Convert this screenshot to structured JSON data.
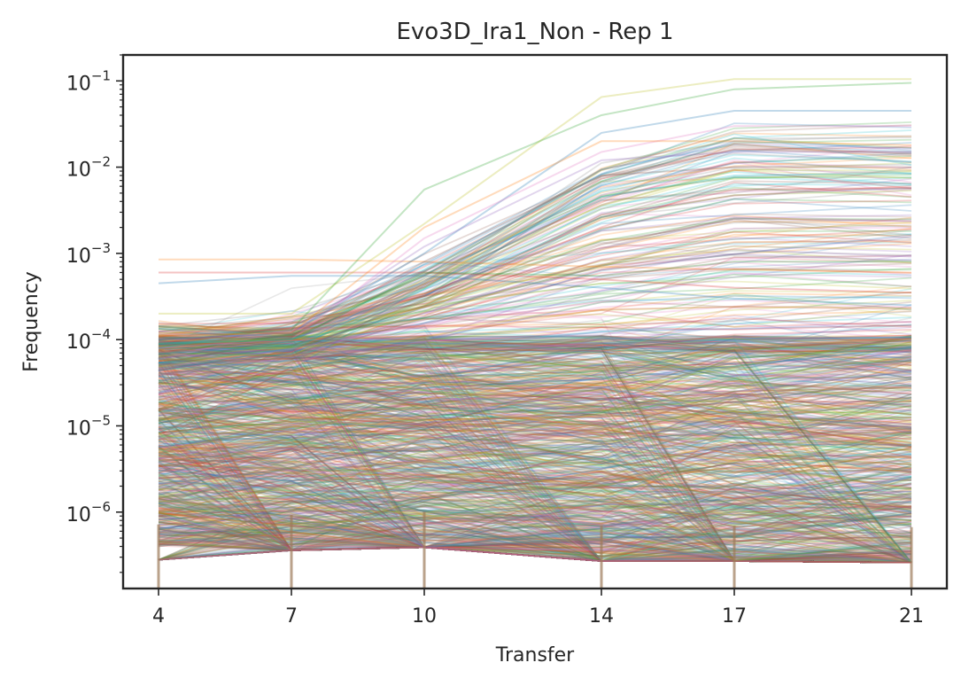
{
  "chart_data": {
    "type": "line",
    "title": "Evo3D_Ira1_Non - Rep 1",
    "xlabel": "Transfer",
    "ylabel": "Frequency",
    "x": [
      4,
      7,
      10,
      14,
      17,
      21
    ],
    "x_tick_labels": [
      "4",
      "7",
      "10",
      "14",
      "17",
      "21"
    ],
    "xlim": [
      3.2,
      21.8
    ],
    "y_scale": "log",
    "ylim": [
      1.3e-07,
      0.2
    ],
    "y_ticks": [
      {
        "value": 1e-06,
        "base": "10",
        "exp": "−6"
      },
      {
        "value": 1e-05,
        "base": "10",
        "exp": "−5"
      },
      {
        "value": 0.0001,
        "base": "10",
        "exp": "−4"
      },
      {
        "value": 0.001,
        "base": "10",
        "exp": "−3"
      },
      {
        "value": 0.01,
        "base": "10",
        "exp": "−2"
      },
      {
        "value": 0.1,
        "base": "10",
        "exp": "−1"
      }
    ],
    "grid": false,
    "legend": "none",
    "line_alpha": 0.18,
    "palette": [
      "#1f77b4",
      "#ff7f0e",
      "#2ca02c",
      "#d62728",
      "#9467bd",
      "#8c564b",
      "#e377c2",
      "#7f7f7f",
      "#bcbd22",
      "#17becf"
    ],
    "series_note": "thousands of lineage trajectories",
    "highlight_series": [
      {
        "values": [
          0.00045,
          0.00055,
          0.00055,
          0.0004,
          0.0003,
          0.00025
        ],
        "color": "#1f77b4"
      },
      {
        "values": [
          0.00085,
          0.00085,
          0.0008,
          0.0007,
          0.00065,
          0.0006
        ],
        "color": "#ff7f0e"
      },
      {
        "values": [
          0.0006,
          0.0006,
          0.0006,
          0.0005,
          0.0004,
          0.00035
        ],
        "color": "#d62728"
      },
      {
        "values": [
          0.0002,
          0.0002,
          0.0022,
          0.065,
          0.105,
          0.105
        ],
        "color": "#bcbd22"
      },
      {
        "values": [
          0.0001,
          0.00012,
          0.001,
          0.025,
          0.045,
          0.045
        ],
        "color": "#1f77b4"
      },
      {
        "values": [
          0.0001,
          0.00013,
          0.0055,
          0.04,
          0.08,
          0.095
        ],
        "color": "#2ca02c"
      },
      {
        "values": [
          8e-05,
          0.0001,
          0.0015,
          0.015,
          0.03,
          0.03
        ],
        "color": "#e377c2"
      },
      {
        "values": [
          0.0001,
          0.00011,
          0.0008,
          0.008,
          0.01,
          0.01
        ],
        "color": "#8c564b"
      },
      {
        "values": [
          9e-05,
          0.0001,
          0.0006,
          0.00055,
          0.0008,
          0.0008
        ],
        "color": "#2ca02c"
      },
      {
        "values": [
          0.0001,
          0.00012,
          0.0012,
          0.012,
          0.015,
          0.015
        ],
        "color": "#9467bd"
      },
      {
        "values": [
          9e-05,
          0.0001,
          0.0004,
          0.0045,
          0.008,
          0.0085
        ],
        "color": "#17becf"
      },
      {
        "values": [
          0.00011,
          0.00012,
          0.002,
          0.02,
          0.02,
          0.018
        ],
        "color": "#ff7f0e"
      }
    ]
  }
}
